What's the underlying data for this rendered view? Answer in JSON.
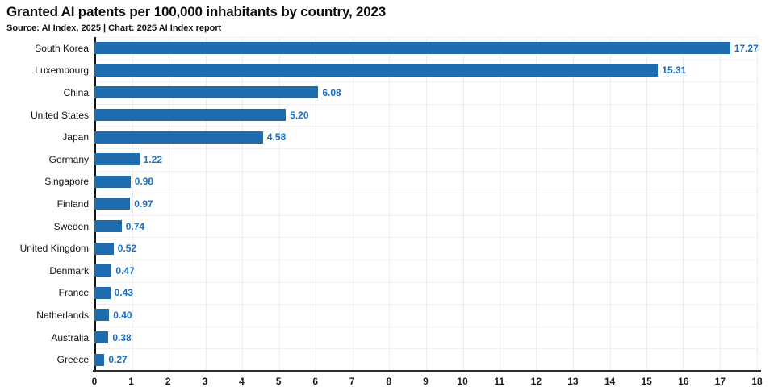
{
  "header": {
    "title": "Granted AI patents per 100,000 inhabitants by country, 2023",
    "subtitle": "Source: AI Index, 2025 | Chart: 2025 AI Index report"
  },
  "chart_data": {
    "type": "bar",
    "orientation": "horizontal",
    "title": "Granted AI patents per 100,000 inhabitants by country, 2023",
    "subtitle": "Source: AI Index, 2025 | Chart: 2025 AI Index report",
    "categories": [
      "South Korea",
      "Luxembourg",
      "China",
      "United States",
      "Japan",
      "Germany",
      "Singapore",
      "Finland",
      "Sweden",
      "United Kingdom",
      "Denmark",
      "France",
      "Netherlands",
      "Australia",
      "Greece"
    ],
    "values": [
      17.27,
      15.31,
      6.08,
      5.2,
      4.58,
      1.22,
      0.98,
      0.97,
      0.74,
      0.52,
      0.47,
      0.43,
      0.4,
      0.38,
      0.27
    ],
    "value_labels": [
      "17.27",
      "15.31",
      "6.08",
      "5.20",
      "4.58",
      "1.22",
      "0.98",
      "0.97",
      "0.74",
      "0.52",
      "0.47",
      "0.43",
      "0.40",
      "0.38",
      "0.27"
    ],
    "xlabel": "",
    "ylabel": "",
    "xlim": [
      0,
      18
    ],
    "x_ticks": [
      0,
      1,
      2,
      3,
      4,
      5,
      6,
      7,
      8,
      9,
      10,
      11,
      12,
      13,
      14,
      15,
      16,
      17,
      18
    ],
    "grid": true,
    "legend": "none",
    "colors": {
      "bar": "#1f6bb0",
      "value_label": "#1a6fc4",
      "axis": "#2e2e2e",
      "grid": "#ededed",
      "text": "#111111"
    }
  }
}
